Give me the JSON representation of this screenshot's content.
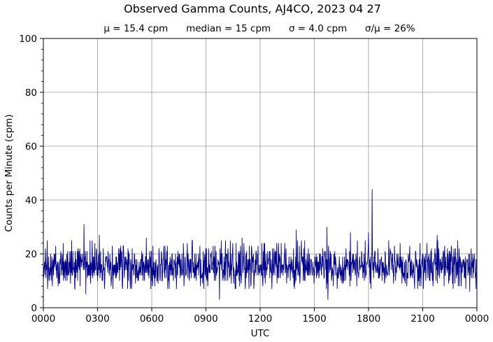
{
  "chart_data": {
    "type": "line",
    "title": "Observed Gamma Counts, AJ4CO, 2023 04 27",
    "subtitle": "μ = 15.4 cpm      median = 15 cpm      σ = 4.0 cpm      σ/μ = 26%",
    "xlabel": "UTC",
    "ylabel": "Counts per Minute (cpm)",
    "x_tick_labels": [
      "0000",
      "0300",
      "0600",
      "0900",
      "1200",
      "1500",
      "1800",
      "2100",
      "0000"
    ],
    "x_tick_hours": [
      0,
      3,
      6,
      9,
      12,
      15,
      18,
      21,
      24
    ],
    "y_ticks": [
      0,
      20,
      40,
      60,
      80,
      100
    ],
    "xlim": [
      0,
      24
    ],
    "ylim": [
      0,
      100
    ],
    "grid": true,
    "series": [
      {
        "color": "#00008b",
        "sample_interval_minutes": 1,
        "mean": 15.4,
        "median": 15,
        "std": 4.0,
        "notable_points": [
          {
            "x": 0.5,
            "y": 8
          },
          {
            "x": 2.25,
            "y": 31
          },
          {
            "x": 2.35,
            "y": 5
          },
          {
            "x": 3.1,
            "y": 27
          },
          {
            "x": 5.7,
            "y": 26
          },
          {
            "x": 9.75,
            "y": 3
          },
          {
            "x": 11.0,
            "y": 26
          },
          {
            "x": 14.0,
            "y": 29
          },
          {
            "x": 15.7,
            "y": 30
          },
          {
            "x": 15.75,
            "y": 3
          },
          {
            "x": 17.0,
            "y": 28
          },
          {
            "x": 18.0,
            "y": 28
          },
          {
            "x": 18.2,
            "y": 44
          },
          {
            "x": 21.8,
            "y": 27
          },
          {
            "x": 23.6,
            "y": 6
          }
        ]
      }
    ]
  }
}
